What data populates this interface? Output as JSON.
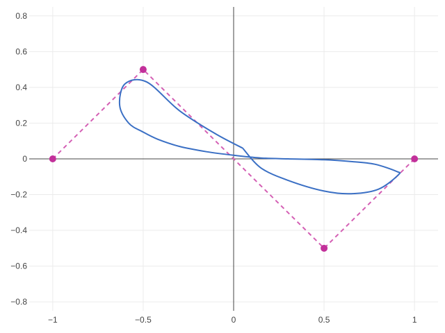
{
  "chart_data": {
    "type": "line",
    "title": "",
    "xlabel": "",
    "ylabel": "",
    "xlim": [
      -1.13,
      1.13
    ],
    "ylim": [
      -0.85,
      0.85
    ],
    "grid": true,
    "legend": "none",
    "x_ticks": [
      -1,
      -0.5,
      0,
      0.5,
      1
    ],
    "x_tick_labels": [
      "−1",
      "−0.5",
      "0",
      "0.5",
      "1"
    ],
    "y_ticks": [
      -0.8,
      -0.6,
      -0.4,
      -0.2,
      0,
      0.2,
      0.4,
      0.6,
      0.8
    ],
    "y_tick_labels": [
      "−0.8",
      "−0.6",
      "−0.4",
      "−0.2",
      "0",
      "0.2",
      "0.4",
      "0.6",
      "0.8"
    ],
    "series": [
      {
        "role": "control-polygon",
        "style": "dashed-with-markers",
        "color": "#d45fb4",
        "marker_color": "#c2309a",
        "x": [
          -1,
          -0.5,
          0.5,
          1
        ],
        "y": [
          0,
          0.5,
          -0.5,
          0
        ]
      },
      {
        "role": "curve",
        "style": "solid",
        "color": "#3a6fc4",
        "x": [
          0.05,
          -0.1,
          -0.3,
          -0.48,
          -0.6,
          -0.63,
          -0.58,
          -0.5,
          -0.42,
          -0.3,
          -0.15,
          0,
          0.15,
          0.3,
          0.5,
          0.65,
          0.78,
          0.9,
          0.91,
          0.8,
          0.65,
          0.5,
          0.3,
          0.15,
          0.05
        ],
        "y": [
          0.06,
          0.14,
          0.27,
          0.43,
          0.42,
          0.3,
          0.2,
          0.15,
          0.11,
          0.07,
          0.04,
          0.02,
          0.005,
          0.0,
          -0.005,
          -0.015,
          -0.03,
          -0.07,
          -0.09,
          -0.17,
          -0.195,
          -0.18,
          -0.12,
          -0.05,
          0.06
        ]
      }
    ]
  }
}
